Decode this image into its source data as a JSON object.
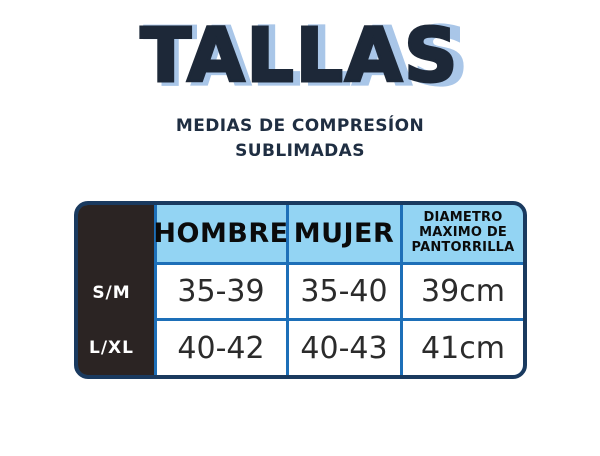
{
  "header": {
    "title": "TALLAS",
    "subtitle_line1": "MEDIAS DE COMPRESÍON",
    "subtitle_line2": "SUBLIMADAS"
  },
  "table": {
    "diametro_header_lines": [
      "DIAMETRO",
      "MAXIMO DE",
      "PANTORRILLA"
    ]
  },
  "chart_data": {
    "type": "table",
    "title": "TALLAS",
    "subtitle": "MEDIAS DE COMPRESÍON SUBLIMADAS",
    "columns": [
      "",
      "HOMBRE",
      "MUJER",
      "DIAMETRO MAXIMO DE PANTORRILLA"
    ],
    "rows": [
      [
        "S/M",
        "35-39",
        "35-40",
        "39cm"
      ],
      [
        "L/XL",
        "40-42",
        "40-43",
        "41cm"
      ]
    ]
  },
  "colors": {
    "title_text": "#1d2838",
    "title_shadow": "#a9c6e8",
    "subtitle_text": "#1f2e42",
    "header_cell_bg": "#93d4f3",
    "outer_border": "#1a3a5f",
    "grid_line": "#1d6fb8",
    "label_column_bg": "#2b2423",
    "label_text": "#ffffff",
    "cell_text": "#2b2b2b"
  }
}
